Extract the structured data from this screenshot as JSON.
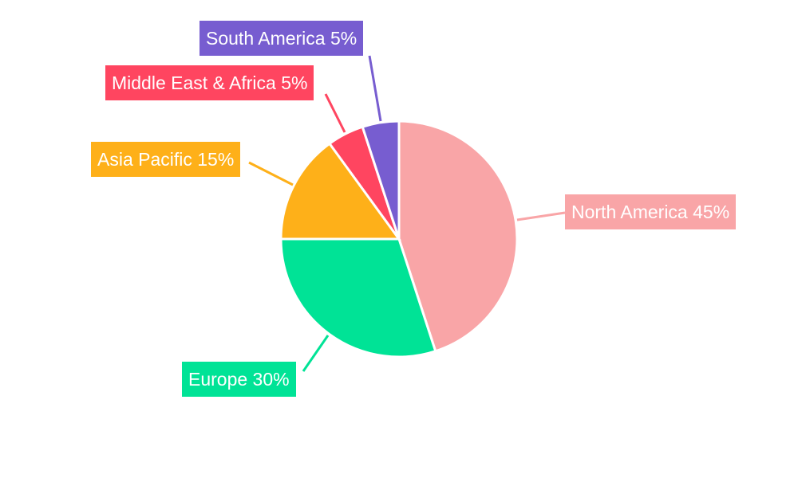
{
  "chart_data": {
    "type": "pie",
    "title": "",
    "categories": [
      "North America",
      "Europe",
      "Asia Pacific",
      "Middle East & Africa",
      "South America"
    ],
    "values": [
      45,
      30,
      15,
      5,
      5
    ],
    "labels": [
      "North America 45%",
      "Europe 30%",
      "Asia Pacific 15%",
      "Middle East & Africa 5%",
      "South America 5%"
    ],
    "colors": [
      "#F9A5A7",
      "#00E396",
      "#FEB019",
      "#FF4560",
      "#775DD0"
    ],
    "start_angle": "top",
    "direction": "clockwise",
    "legend": "none"
  }
}
